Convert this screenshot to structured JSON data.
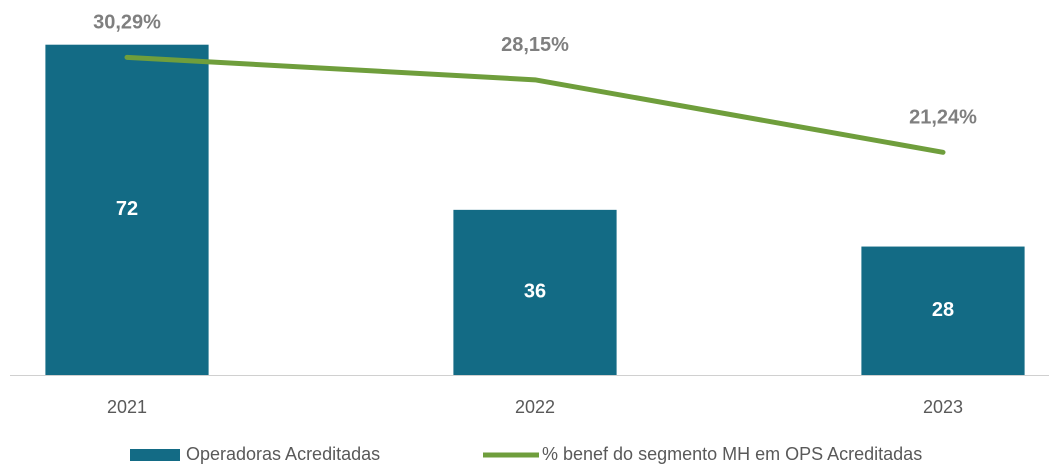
{
  "chart_data": {
    "type": "combo",
    "categories": [
      "2021",
      "2022",
      "2023"
    ],
    "series": [
      {
        "name": "Operadoras Acreditadas",
        "type": "bar",
        "color": "#136b85",
        "values": [
          72,
          36,
          28
        ]
      },
      {
        "name": "% benef do segmento MH em OPS Acreditadas",
        "type": "line",
        "axis": "y2",
        "color": "#6f9e3c",
        "values": [
          30.29,
          28.15,
          21.24
        ],
        "value_labels": [
          "30,29%",
          "28,15%",
          "21,24%"
        ]
      }
    ],
    "ylim": [
      0,
      80
    ],
    "y2lim": [
      0,
      35
    ],
    "grid": false,
    "legend": "bottom"
  }
}
